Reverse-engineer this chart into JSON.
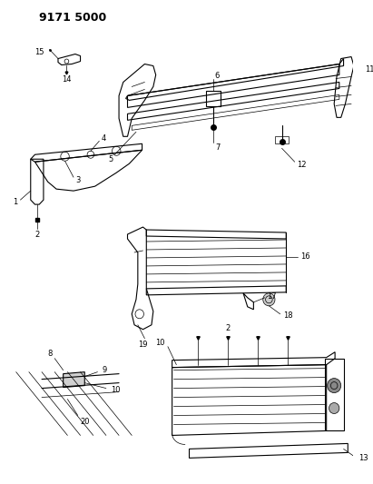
{
  "title": "9171 5000",
  "bg": "#ffffff",
  "lc": "#000000",
  "fig_w": 4.11,
  "fig_h": 5.33,
  "dpi": 100
}
